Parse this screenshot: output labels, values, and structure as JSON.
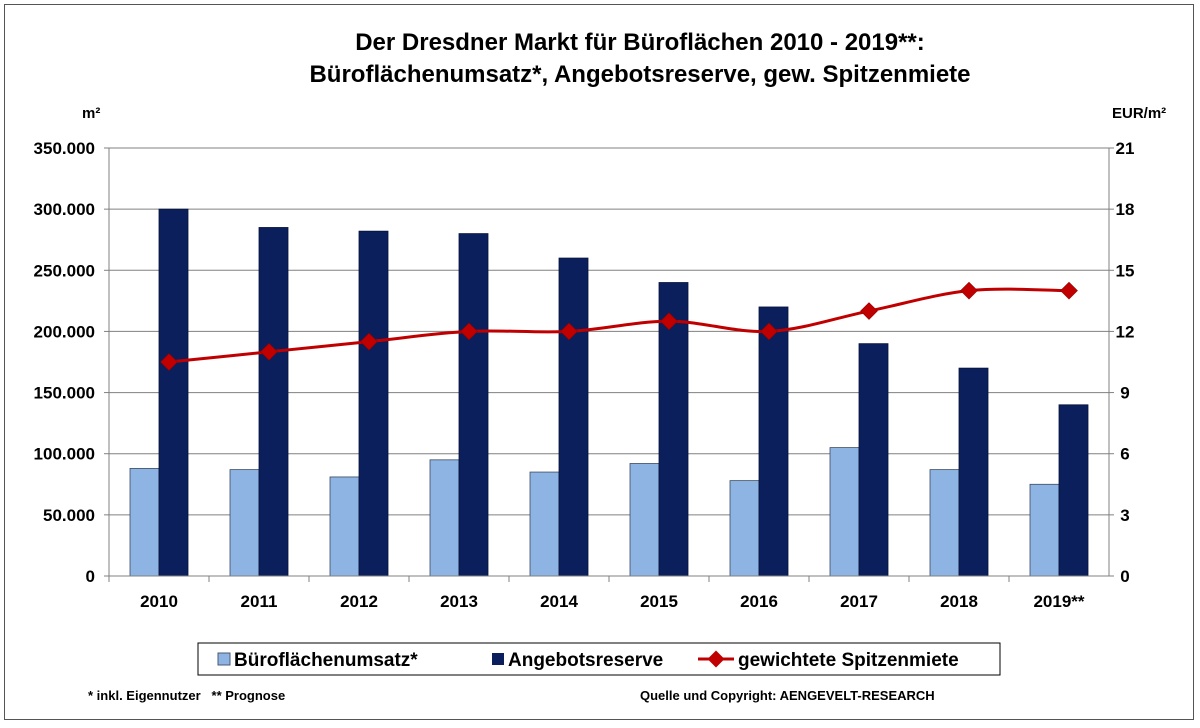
{
  "chart_data": {
    "type": "bar",
    "title": "Der Dresdner Markt für Büroflächen 2010 - 2019**:",
    "subtitle": "Büroflächenumsatz*, Angebotsreserve,  gew. Spitzenmiete",
    "ylabel_left": "m²",
    "ylabel_right": "EUR/m²",
    "categories": [
      "2010",
      "2011",
      "2012",
      "2013",
      "2014",
      "2015",
      "2016",
      "2017",
      "2018",
      "2019**"
    ],
    "y_left": {
      "range": [
        0,
        350000
      ],
      "ticks": [
        "0",
        "50.000",
        "100.000",
        "150.000",
        "200.000",
        "250.000",
        "300.000",
        "350.000"
      ]
    },
    "y_right": {
      "range": [
        0,
        21
      ],
      "ticks": [
        "0",
        "3",
        "6",
        "9",
        "12",
        "15",
        "18",
        "21"
      ]
    },
    "grid": true,
    "legend_placement": "bottom",
    "series": [
      {
        "name": "Büroflächenumsatz*",
        "type": "bar",
        "axis": "left",
        "color": "#8db4e2",
        "values": [
          88000,
          87000,
          81000,
          95000,
          85000,
          92000,
          78000,
          105000,
          87000,
          75000
        ]
      },
      {
        "name": "Angebotsreserve",
        "type": "bar",
        "axis": "left",
        "color": "#0a1f5c",
        "values": [
          300000,
          285000,
          282000,
          280000,
          260000,
          240000,
          220000,
          190000,
          170000,
          140000
        ]
      },
      {
        "name": "gewichtete Spitzenmiete",
        "type": "line",
        "axis": "right",
        "color": "#c00000",
        "values": [
          10.5,
          11.0,
          11.5,
          12.0,
          12.0,
          12.5,
          12.0,
          13.0,
          14.0,
          14.0
        ]
      }
    ],
    "footnote_left": "* inkl. Eigennutzer   ** Prognose",
    "footnote_right": "Quelle und Copyright: AENGEVELT-RESEARCH"
  }
}
